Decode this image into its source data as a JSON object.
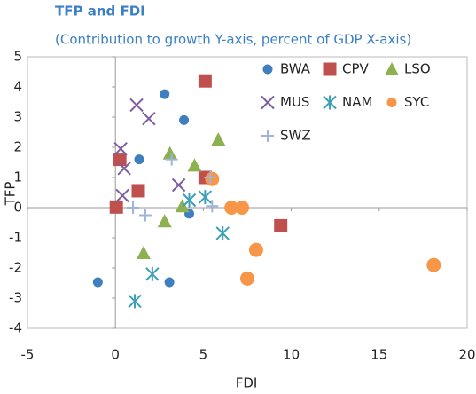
{
  "chart_data": {
    "type": "scatter",
    "title": "TFP and FDI",
    "subtitle": "(Contribution to growth Y-axis, percent of GDP X-axis)",
    "x_label": "FDI",
    "y_label": "TFP",
    "xlim": [
      -5,
      20
    ],
    "xticks": [
      -5,
      0,
      5,
      10,
      15,
      20
    ],
    "ylim": [
      -4,
      5
    ],
    "yticks": [
      -4,
      -3,
      -2,
      -1,
      0,
      1,
      2,
      3,
      4,
      5
    ],
    "legend": "upper right",
    "series": [
      {
        "name": "BWA",
        "color": "#3f7fbf",
        "marker": "circle",
        "x": [
          2.8,
          3.9,
          1.35,
          4.2,
          -1.0,
          3.07
        ],
        "values": [
          3.76,
          2.9,
          1.6,
          -0.2,
          -2.47,
          -2.47
        ]
      },
      {
        "name": "CPV",
        "color": "#c0504d",
        "marker": "square",
        "x": [
          5.1,
          0.25,
          1.3,
          0.05,
          5.1,
          9.4
        ],
        "values": [
          4.2,
          1.6,
          0.56,
          0.02,
          1.0,
          -0.6
        ]
      },
      {
        "name": "LSO",
        "color": "#8db050",
        "marker": "triangle",
        "x": [
          3.1,
          5.85,
          4.5,
          3.8,
          2.8,
          1.6
        ],
        "values": [
          1.8,
          2.26,
          1.4,
          0.05,
          -0.45,
          -1.5
        ]
      },
      {
        "name": "MUS",
        "color": "#7a5ea0",
        "marker": "x",
        "x": [
          1.2,
          1.9,
          0.3,
          0.5,
          0.4,
          3.6
        ],
        "values": [
          3.4,
          2.95,
          1.95,
          1.3,
          0.4,
          0.75
        ]
      },
      {
        "name": "NAM",
        "color": "#3ba0b8",
        "marker": "asterisk",
        "x": [
          4.2,
          5.1,
          6.1,
          2.1,
          1.1
        ],
        "values": [
          0.25,
          0.35,
          -0.85,
          -2.2,
          -3.1
        ]
      },
      {
        "name": "SYC",
        "color": "#f79646",
        "marker": "circle-big",
        "x": [
          5.5,
          6.6,
          7.2,
          8.0,
          7.5,
          18.1
        ],
        "values": [
          0.95,
          0.0,
          0.0,
          -1.4,
          -2.35,
          -1.9
        ]
      },
      {
        "name": "SWZ",
        "color": "#9fb4d8",
        "marker": "plus",
        "x": [
          3.2,
          5.4,
          1.0,
          1.7,
          5.5
        ],
        "values": [
          1.6,
          1.0,
          0.0,
          -0.25,
          0.05
        ]
      }
    ]
  }
}
